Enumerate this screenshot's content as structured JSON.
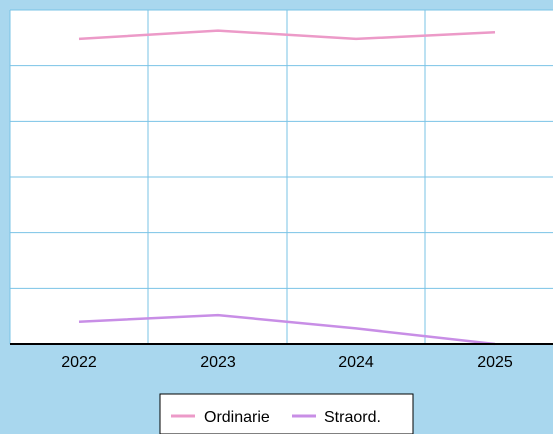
{
  "chart_data": {
    "type": "line",
    "title": "",
    "xlabel": "",
    "ylabel": "",
    "categories": [
      "2022",
      "2023",
      "2024",
      "2025"
    ],
    "ylim": [
      0,
      6
    ],
    "grid": true,
    "legend_position": "bottom",
    "series": [
      {
        "name": "Ordinarie",
        "color": "#ec9ac8",
        "values": [
          5.48,
          5.63,
          5.48,
          5.6
        ]
      },
      {
        "name": "Straord.",
        "color": "#c88ee6",
        "values": [
          0.4,
          0.52,
          0.28,
          0.0
        ]
      }
    ]
  },
  "colors": {
    "background": "#a9d7ee",
    "plot_area": "#ffffff",
    "grid": "#79c3e6",
    "axis": "#000000"
  }
}
